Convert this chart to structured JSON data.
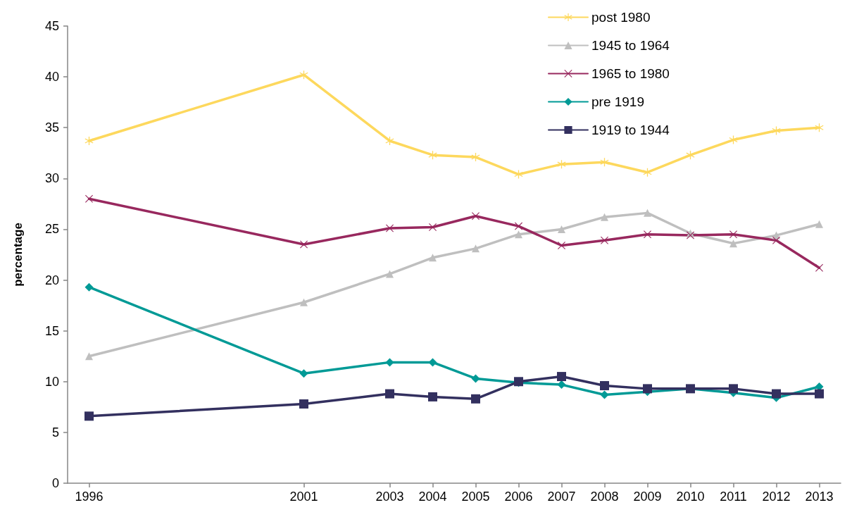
{
  "chart_data": {
    "type": "line",
    "ylabel": "percentage",
    "x": [
      1996,
      2001,
      2003,
      2004,
      2005,
      2006,
      2007,
      2008,
      2009,
      2010,
      2011,
      2012,
      2013
    ],
    "xlim": [
      1995.5,
      2013.5
    ],
    "xticks": [
      1996,
      2001,
      2003,
      2004,
      2005,
      2006,
      2007,
      2008,
      2009,
      2010,
      2011,
      2012,
      2013
    ],
    "ylim": [
      0,
      45
    ],
    "yticks": [
      0,
      5,
      10,
      15,
      20,
      25,
      30,
      35,
      40,
      45
    ],
    "grid": false,
    "legend": "top right",
    "line_style": "solid",
    "series": [
      {
        "name": "post 1980",
        "color": "#fdd85d",
        "marker": "star",
        "values": [
          33.7,
          40.2,
          33.7,
          32.3,
          32.1,
          30.4,
          31.4,
          31.6,
          30.6,
          32.3,
          33.8,
          34.7,
          35.0
        ]
      },
      {
        "name": "1945 to 1964",
        "color": "#bfbfbf",
        "marker": "triangle",
        "values": [
          12.5,
          17.8,
          20.6,
          22.2,
          23.1,
          24.5,
          25.0,
          26.2,
          26.6,
          24.6,
          23.6,
          24.4,
          25.5
        ]
      },
      {
        "name": "1965 to 1980",
        "color": "#98285e",
        "marker": "cross",
        "values": [
          28.0,
          23.5,
          25.1,
          25.2,
          26.3,
          25.3,
          23.4,
          23.9,
          24.5,
          24.4,
          24.5,
          23.9,
          21.2
        ]
      },
      {
        "name": "pre 1919",
        "color": "#009a96",
        "marker": "diamond",
        "values": [
          19.3,
          10.8,
          11.9,
          11.9,
          10.3,
          9.9,
          9.7,
          8.7,
          9.0,
          9.3,
          8.9,
          8.4,
          9.5
        ]
      },
      {
        "name": "1919 to 1944",
        "color": "#33305f",
        "marker": "square",
        "values": [
          6.6,
          7.8,
          8.8,
          8.5,
          8.3,
          10.0,
          10.5,
          9.6,
          9.3,
          9.3,
          9.3,
          8.8,
          8.8
        ]
      }
    ]
  }
}
